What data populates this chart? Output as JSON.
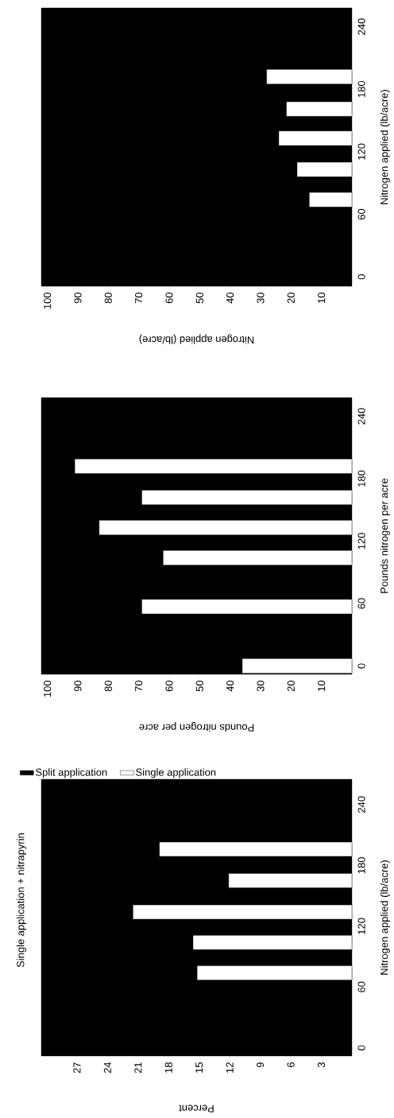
{
  "chart_data": [
    {
      "type": "bar",
      "orientation": "horizontal",
      "xlabel": "Nitrogen applied (lb/acre)",
      "ylabel": "Nitrogen applied (lb/acre)",
      "x": [
        74,
        103,
        133,
        161,
        192
      ],
      "series": [
        {
          "color": "#ffffff",
          "values": [
            14,
            18,
            24,
            21.5,
            28
          ]
        }
      ],
      "xlim": [
        102,
        0
      ],
      "xticks": [
        10,
        20,
        30,
        40,
        50,
        60,
        70,
        80,
        90,
        100
      ],
      "ylim": [
        -9,
        258
      ],
      "yticks": [
        0,
        60,
        120,
        180,
        240
      ]
    },
    {
      "type": "bar",
      "orientation": "horizontal",
      "xlabel": "Pounds nitrogen per acre",
      "ylabel": "Pounds nitrogen per acre",
      "x": [
        0,
        57,
        104,
        133,
        162,
        192
      ],
      "legend": "left",
      "series": [
        {
          "name": "Split application",
          "color": "#000000",
          "values": [
            null,
            null,
            null,
            null,
            null,
            null
          ]
        },
        {
          "name": "Single application",
          "color": "#ffffff",
          "values": [
            36,
            69,
            62,
            83,
            69,
            91
          ]
        }
      ],
      "xlim": [
        102,
        0
      ],
      "xticks": [
        10,
        20,
        30,
        40,
        50,
        60,
        70,
        80,
        90,
        100
      ],
      "ylim": [
        -8,
        258
      ],
      "yticks": [
        0,
        60,
        120,
        180,
        240
      ]
    },
    {
      "type": "bar",
      "orientation": "horizontal",
      "title": "Single application + nitrapyrin",
      "xlabel": "Percent",
      "ylabel": "Nitrogen applied (lb/acre)",
      "x": [
        74,
        104,
        134,
        165,
        196
      ],
      "series": [
        {
          "color": "#ffffff",
          "values": [
            15.2,
            15.6,
            21.5,
            12.1,
            18.9
          ]
        }
      ],
      "xlim": [
        30.5,
        0
      ],
      "xticks": [
        3,
        6,
        9,
        12,
        15,
        18,
        21,
        24,
        27
      ],
      "ylim": [
        -8,
        265
      ],
      "yticks": [
        0,
        60,
        120,
        180,
        240
      ]
    }
  ]
}
